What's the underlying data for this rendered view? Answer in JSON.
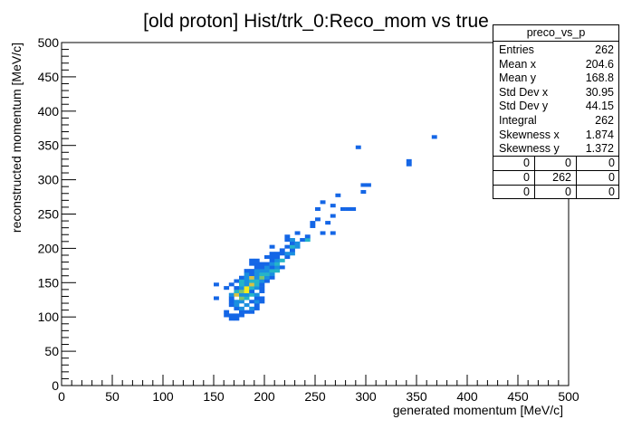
{
  "chart_data": {
    "type": "heatmap",
    "title": "[old proton] Hist/trk_0:Reco_mom vs true",
    "xlabel": "generated momentum [MeV/c]",
    "ylabel": "reconstructed momentum [MeV/c]",
    "xlim": [
      0,
      500
    ],
    "ylim": [
      0,
      500
    ],
    "x_ticks": [
      "0",
      "50",
      "100",
      "150",
      "200",
      "250",
      "300",
      "350",
      "400",
      "450",
      "500"
    ],
    "y_ticks": [
      "0",
      "50",
      "100",
      "150",
      "200",
      "250",
      "300",
      "350",
      "400",
      "450",
      "500"
    ],
    "bin_width": 5,
    "colors": {
      "1": "#1466e6",
      "2": "#1a8fe0",
      "3": "#25b4c8",
      "4": "#7cc472",
      "5": "#d6c244",
      "6": "#f7ec1c"
    },
    "bins": [
      {
        "x": 165,
        "y": 95,
        "c": 1
      },
      {
        "x": 170,
        "y": 95,
        "c": 1
      },
      {
        "x": 160,
        "y": 100,
        "c": 1
      },
      {
        "x": 165,
        "y": 100,
        "c": 1
      },
      {
        "x": 170,
        "y": 100,
        "c": 1
      },
      {
        "x": 175,
        "y": 100,
        "c": 1
      },
      {
        "x": 160,
        "y": 105,
        "c": 1
      },
      {
        "x": 175,
        "y": 105,
        "c": 1
      },
      {
        "x": 180,
        "y": 105,
        "c": 1
      },
      {
        "x": 185,
        "y": 105,
        "c": 1
      },
      {
        "x": 170,
        "y": 110,
        "c": 1
      },
      {
        "x": 175,
        "y": 110,
        "c": 2
      },
      {
        "x": 185,
        "y": 110,
        "c": 2
      },
      {
        "x": 190,
        "y": 110,
        "c": 1
      },
      {
        "x": 165,
        "y": 115,
        "c": 1
      },
      {
        "x": 170,
        "y": 115,
        "c": 2
      },
      {
        "x": 180,
        "y": 115,
        "c": 2
      },
      {
        "x": 190,
        "y": 115,
        "c": 1
      },
      {
        "x": 165,
        "y": 120,
        "c": 1
      },
      {
        "x": 170,
        "y": 120,
        "c": 2
      },
      {
        "x": 175,
        "y": 120,
        "c": 2
      },
      {
        "x": 185,
        "y": 120,
        "c": 1
      },
      {
        "x": 190,
        "y": 120,
        "c": 2
      },
      {
        "x": 195,
        "y": 120,
        "c": 1
      },
      {
        "x": 150,
        "y": 125,
        "c": 1
      },
      {
        "x": 165,
        "y": 125,
        "c": 1
      },
      {
        "x": 175,
        "y": 125,
        "c": 4
      },
      {
        "x": 180,
        "y": 125,
        "c": 3
      },
      {
        "x": 190,
        "y": 125,
        "c": 1
      },
      {
        "x": 195,
        "y": 125,
        "c": 1
      },
      {
        "x": 165,
        "y": 130,
        "c": 2
      },
      {
        "x": 170,
        "y": 130,
        "c": 5
      },
      {
        "x": 175,
        "y": 130,
        "c": 2
      },
      {
        "x": 180,
        "y": 130,
        "c": 2
      },
      {
        "x": 185,
        "y": 130,
        "c": 3
      },
      {
        "x": 190,
        "y": 130,
        "c": 2
      },
      {
        "x": 170,
        "y": 135,
        "c": 3
      },
      {
        "x": 175,
        "y": 135,
        "c": 4
      },
      {
        "x": 180,
        "y": 135,
        "c": 6
      },
      {
        "x": 185,
        "y": 135,
        "c": 1
      },
      {
        "x": 195,
        "y": 135,
        "c": 1
      },
      {
        "x": 160,
        "y": 140,
        "c": 1
      },
      {
        "x": 170,
        "y": 140,
        "c": 1
      },
      {
        "x": 175,
        "y": 140,
        "c": 2
      },
      {
        "x": 180,
        "y": 140,
        "c": 6
      },
      {
        "x": 185,
        "y": 140,
        "c": 3
      },
      {
        "x": 190,
        "y": 140,
        "c": 2
      },
      {
        "x": 195,
        "y": 140,
        "c": 1
      },
      {
        "x": 150,
        "y": 145,
        "c": 1
      },
      {
        "x": 165,
        "y": 145,
        "c": 1
      },
      {
        "x": 175,
        "y": 145,
        "c": 3
      },
      {
        "x": 180,
        "y": 145,
        "c": 2
      },
      {
        "x": 185,
        "y": 145,
        "c": 5
      },
      {
        "x": 190,
        "y": 145,
        "c": 3
      },
      {
        "x": 195,
        "y": 145,
        "c": 1
      },
      {
        "x": 170,
        "y": 150,
        "c": 1
      },
      {
        "x": 175,
        "y": 150,
        "c": 3
      },
      {
        "x": 180,
        "y": 150,
        "c": 2
      },
      {
        "x": 185,
        "y": 150,
        "c": 3
      },
      {
        "x": 190,
        "y": 150,
        "c": 3
      },
      {
        "x": 195,
        "y": 150,
        "c": 2
      },
      {
        "x": 200,
        "y": 150,
        "c": 1
      },
      {
        "x": 175,
        "y": 155,
        "c": 1
      },
      {
        "x": 180,
        "y": 155,
        "c": 2
      },
      {
        "x": 185,
        "y": 155,
        "c": 5
      },
      {
        "x": 190,
        "y": 155,
        "c": 2
      },
      {
        "x": 195,
        "y": 155,
        "c": 4
      },
      {
        "x": 200,
        "y": 155,
        "c": 2
      },
      {
        "x": 205,
        "y": 155,
        "c": 1
      },
      {
        "x": 180,
        "y": 160,
        "c": 2
      },
      {
        "x": 185,
        "y": 160,
        "c": 1
      },
      {
        "x": 190,
        "y": 160,
        "c": 2
      },
      {
        "x": 195,
        "y": 160,
        "c": 3
      },
      {
        "x": 200,
        "y": 160,
        "c": 3
      },
      {
        "x": 205,
        "y": 160,
        "c": 2
      },
      {
        "x": 180,
        "y": 165,
        "c": 1
      },
      {
        "x": 185,
        "y": 165,
        "c": 1
      },
      {
        "x": 190,
        "y": 165,
        "c": 2
      },
      {
        "x": 195,
        "y": 165,
        "c": 2
      },
      {
        "x": 200,
        "y": 165,
        "c": 2
      },
      {
        "x": 205,
        "y": 165,
        "c": 3
      },
      {
        "x": 210,
        "y": 165,
        "c": 3
      },
      {
        "x": 190,
        "y": 170,
        "c": 1
      },
      {
        "x": 195,
        "y": 170,
        "c": 1
      },
      {
        "x": 200,
        "y": 170,
        "c": 2
      },
      {
        "x": 205,
        "y": 170,
        "c": 1
      },
      {
        "x": 210,
        "y": 170,
        "c": 2
      },
      {
        "x": 215,
        "y": 170,
        "c": 1
      },
      {
        "x": 185,
        "y": 175,
        "c": 1
      },
      {
        "x": 190,
        "y": 175,
        "c": 1
      },
      {
        "x": 195,
        "y": 175,
        "c": 1
      },
      {
        "x": 200,
        "y": 175,
        "c": 1
      },
      {
        "x": 205,
        "y": 175,
        "c": 2
      },
      {
        "x": 210,
        "y": 175,
        "c": 3
      },
      {
        "x": 185,
        "y": 180,
        "c": 1
      },
      {
        "x": 190,
        "y": 180,
        "c": 1
      },
      {
        "x": 205,
        "y": 180,
        "c": 1
      },
      {
        "x": 210,
        "y": 180,
        "c": 2
      },
      {
        "x": 215,
        "y": 180,
        "c": 3
      },
      {
        "x": 200,
        "y": 185,
        "c": 1
      },
      {
        "x": 205,
        "y": 185,
        "c": 1
      },
      {
        "x": 210,
        "y": 185,
        "c": 1
      },
      {
        "x": 220,
        "y": 185,
        "c": 1
      },
      {
        "x": 205,
        "y": 190,
        "c": 1
      },
      {
        "x": 210,
        "y": 190,
        "c": 1
      },
      {
        "x": 215,
        "y": 190,
        "c": 1
      },
      {
        "x": 220,
        "y": 190,
        "c": 2
      },
      {
        "x": 225,
        "y": 190,
        "c": 2
      },
      {
        "x": 215,
        "y": 195,
        "c": 1
      },
      {
        "x": 225,
        "y": 195,
        "c": 1
      },
      {
        "x": 205,
        "y": 200,
        "c": 1
      },
      {
        "x": 220,
        "y": 200,
        "c": 1
      },
      {
        "x": 225,
        "y": 200,
        "c": 3
      },
      {
        "x": 230,
        "y": 200,
        "c": 2
      },
      {
        "x": 225,
        "y": 205,
        "c": 1
      },
      {
        "x": 230,
        "y": 205,
        "c": 2
      },
      {
        "x": 220,
        "y": 210,
        "c": 1
      },
      {
        "x": 225,
        "y": 210,
        "c": 2
      },
      {
        "x": 235,
        "y": 210,
        "c": 1
      },
      {
        "x": 240,
        "y": 210,
        "c": 3
      },
      {
        "x": 220,
        "y": 215,
        "c": 1
      },
      {
        "x": 240,
        "y": 215,
        "c": 1
      },
      {
        "x": 230,
        "y": 220,
        "c": 1
      },
      {
        "x": 255,
        "y": 220,
        "c": 1
      },
      {
        "x": 265,
        "y": 220,
        "c": 1
      },
      {
        "x": 245,
        "y": 230,
        "c": 1
      },
      {
        "x": 245,
        "y": 235,
        "c": 1
      },
      {
        "x": 260,
        "y": 235,
        "c": 1
      },
      {
        "x": 250,
        "y": 240,
        "c": 1
      },
      {
        "x": 265,
        "y": 245,
        "c": 1
      },
      {
        "x": 250,
        "y": 255,
        "c": 1
      },
      {
        "x": 275,
        "y": 255,
        "c": 1
      },
      {
        "x": 280,
        "y": 255,
        "c": 1
      },
      {
        "x": 285,
        "y": 255,
        "c": 1
      },
      {
        "x": 265,
        "y": 260,
        "c": 1
      },
      {
        "x": 255,
        "y": 265,
        "c": 1
      },
      {
        "x": 270,
        "y": 275,
        "c": 1
      },
      {
        "x": 295,
        "y": 280,
        "c": 1
      },
      {
        "x": 295,
        "y": 290,
        "c": 1
      },
      {
        "x": 300,
        "y": 290,
        "c": 1
      },
      {
        "x": 340,
        "y": 320,
        "c": 1
      },
      {
        "x": 340,
        "y": 325,
        "c": 1
      },
      {
        "x": 290,
        "y": 345,
        "c": 1
      },
      {
        "x": 365,
        "y": 360,
        "c": 1
      }
    ]
  },
  "stats": {
    "name": "preco_vs_p",
    "rows": [
      {
        "label": "Entries",
        "value": "262"
      },
      {
        "label": "Mean x",
        "value": "204.6"
      },
      {
        "label": "Mean y",
        "value": "168.8"
      },
      {
        "label": "Std Dev x",
        "value": "30.95"
      },
      {
        "label": "Std Dev y",
        "value": "44.15"
      },
      {
        "label": "Integral",
        "value": "262"
      },
      {
        "label": "Skewness x",
        "value": "1.874"
      },
      {
        "label": "Skewness y",
        "value": "1.372"
      }
    ],
    "cells": [
      [
        "0",
        "0",
        "0"
      ],
      [
        "0",
        "262",
        "0"
      ],
      [
        "0",
        "0",
        "0"
      ]
    ]
  }
}
